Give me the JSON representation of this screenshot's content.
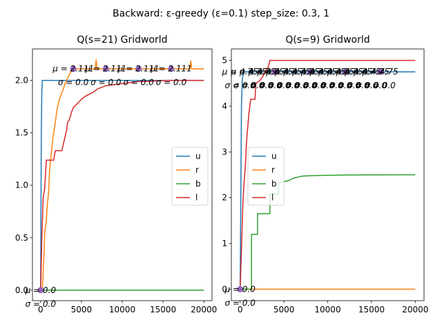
{
  "figure": {
    "suptitle": "Backward: ε-greedy (ε=0.1) step_size: 0.3, 1"
  },
  "chart_data": [
    {
      "type": "line",
      "title": "Q(s=21) Gridworld",
      "xlabel": "",
      "ylabel": "",
      "xlim": [
        -1000,
        21000
      ],
      "ylim": [
        -0.1,
        2.3
      ],
      "xticks": [
        0,
        5000,
        10000,
        15000,
        20000
      ],
      "xtick_labels": [
        "0",
        "5000",
        "10000",
        "15000",
        "20000"
      ],
      "yticks": [
        0.0,
        0.5,
        1.0,
        1.5,
        2.0
      ],
      "ytick_labels": [
        "0.0",
        "0.5",
        "1.0",
        "1.5",
        "2.0"
      ],
      "grid": false,
      "legend_position": "center-right",
      "series": [
        {
          "name": "u",
          "color": "#1f77b4",
          "x": [
            0,
            80,
            150,
            200,
            20000
          ],
          "y": [
            0,
            1.5,
            1.9,
            2.0,
            2.0
          ]
        },
        {
          "name": "r",
          "color": "#ff7f0e",
          "x": [
            0,
            200,
            450,
            500,
            700,
            800,
            1000,
            1100,
            1300,
            1500,
            1800,
            2000,
            2300,
            2700,
            3000,
            3300,
            3600,
            4000,
            6700,
            6800,
            6900,
            7000,
            9000,
            12000,
            18300,
            18400,
            18500,
            18600,
            20000
          ],
          "y": [
            0,
            0,
            0.4,
            0.55,
            0.66,
            0.8,
            0.95,
            1.15,
            1.3,
            1.45,
            1.6,
            1.72,
            1.82,
            1.9,
            1.97,
            2.02,
            2.07,
            2.11,
            2.11,
            2.2,
            2.11,
            2.11,
            2.11,
            2.11,
            2.11,
            2.19,
            2.11,
            2.11,
            2.11
          ]
        },
        {
          "name": "b",
          "color": "#2ca02c",
          "x": [
            0,
            20000
          ],
          "y": [
            0,
            0
          ]
        },
        {
          "name": "l",
          "color": "#d62728",
          "x": [
            0,
            150,
            300,
            500,
            700,
            800,
            1000,
            1600,
            1800,
            2200,
            2600,
            3200,
            3300,
            3500,
            3800,
            4000,
            4500,
            5000,
            5500,
            6000,
            6500,
            7000,
            8000,
            9000,
            10000,
            11000,
            12000,
            13000,
            14000,
            15000,
            16000,
            17000,
            18000,
            20000
          ],
          "y": [
            0,
            0.5,
            0.88,
            0.97,
            1.24,
            1.24,
            1.24,
            1.24,
            1.33,
            1.33,
            1.33,
            1.53,
            1.6,
            1.62,
            1.7,
            1.74,
            1.78,
            1.82,
            1.85,
            1.87,
            1.89,
            1.92,
            1.95,
            1.96,
            1.97,
            1.98,
            1.99,
            1.99,
            1.995,
            1.998,
            2.0,
            2.0,
            2.0,
            2.0
          ]
        }
      ],
      "markers": {
        "color": "#9467bd",
        "x": [
          0,
          4000,
          8000,
          12000,
          16000
        ],
        "y": [
          0,
          2.111,
          2.111,
          2.111,
          2.111
        ]
      },
      "annotations": [
        {
          "x": 0,
          "y": 0.0,
          "mu": "μ = 0.0",
          "sigma": "σ = 0.0"
        },
        {
          "x": 4000,
          "y": 2.111,
          "mu": "μ = 2.111",
          "sigma": "σ = 0.0"
        },
        {
          "x": 8000,
          "y": 2.111,
          "mu": "μ = 2.111",
          "sigma": "σ = 0.0"
        },
        {
          "x": 12000,
          "y": 2.111,
          "mu": "μ = 2.111",
          "sigma": "σ = 0.0"
        },
        {
          "x": 16000,
          "y": 2.111,
          "mu": "μ = 2.111",
          "sigma": "σ = 0.0"
        }
      ]
    },
    {
      "type": "line",
      "title": "Q(s=9) Gridworld",
      "xlabel": "",
      "ylabel": "",
      "xlim": [
        -1000,
        21000
      ],
      "ylim": [
        -0.25,
        5.25
      ],
      "xticks": [
        0,
        5000,
        10000,
        15000,
        20000
      ],
      "xtick_labels": [
        "0",
        "5000",
        "10000",
        "15000",
        "20000"
      ],
      "yticks": [
        0,
        1,
        2,
        3,
        4,
        5
      ],
      "ytick_labels": [
        "0",
        "1",
        "2",
        "3",
        "4",
        "5"
      ],
      "grid": false,
      "legend_position": "center-left",
      "series": [
        {
          "name": "u",
          "color": "#1f77b4",
          "x": [
            0,
            80,
            150,
            250,
            400,
            20000
          ],
          "y": [
            0,
            2.0,
            4.0,
            4.6,
            4.75,
            4.75
          ]
        },
        {
          "name": "r",
          "color": "#ff7f0e",
          "x": [
            0,
            20000
          ],
          "y": [
            0,
            0
          ]
        },
        {
          "name": "b",
          "color": "#2ca02c",
          "x": [
            0,
            1300,
            1300,
            2000,
            2000,
            3400,
            3400,
            4400,
            4400,
            5000,
            5600,
            6000,
            7000,
            8000,
            10000,
            12000,
            14000,
            16000,
            18000,
            20000
          ],
          "y": [
            0,
            0,
            1.2,
            1.2,
            1.65,
            1.65,
            2.08,
            2.08,
            2.32,
            2.35,
            2.38,
            2.42,
            2.47,
            2.48,
            2.49,
            2.495,
            2.498,
            2.499,
            2.5,
            2.5
          ]
        },
        {
          "name": "l",
          "color": "#d62728",
          "x": [
            0,
            100,
            300,
            400,
            600,
            700,
            800,
            900,
            1000,
            1200,
            1500,
            1700,
            1800,
            2200,
            2600,
            2800,
            3200,
            3400,
            20000
          ],
          "y": [
            0,
            0.5,
            1.8,
            2.2,
            2.7,
            3.1,
            3.4,
            3.6,
            3.85,
            4.15,
            4.15,
            4.15,
            4.5,
            4.55,
            4.65,
            4.75,
            4.85,
            5.0,
            5.0
          ]
        }
      ],
      "markers": {
        "color": "#9467bd",
        "x": [
          0,
          4000,
          8000,
          12000,
          16000
        ],
        "y": [
          0,
          4.75,
          4.75,
          4.75,
          4.75
        ]
      },
      "annotations": [
        {
          "x": 0,
          "y": 0.0,
          "mu": "μ = 0.0",
          "sigma": "σ = 0.0"
        },
        {
          "x": 0,
          "y": 4.75,
          "mu": "μ = 4.75",
          "sigma": "σ = 0.0"
        },
        {
          "x": 1000,
          "y": 4.75,
          "mu": "μ = 4.75",
          "sigma": "σ = 0.0"
        },
        {
          "x": 2000,
          "y": 4.75,
          "mu": "μ = 4.75",
          "sigma": "σ = 0.0"
        },
        {
          "x": 3000,
          "y": 4.75,
          "mu": "μ = 4.75",
          "sigma": "σ = 0.0"
        },
        {
          "x": 4000,
          "y": 4.75,
          "mu": "μ = 4.75",
          "sigma": "σ = 0.0"
        },
        {
          "x": 5000,
          "y": 4.75,
          "mu": "μ = 4.75",
          "sigma": "σ = 0.0"
        },
        {
          "x": 6000,
          "y": 4.75,
          "mu": "μ = 4.75",
          "sigma": "σ = 0.0"
        },
        {
          "x": 7000,
          "y": 4.75,
          "mu": "μ = 4.75",
          "sigma": "σ = 0.0"
        },
        {
          "x": 8000,
          "y": 4.75,
          "mu": "μ = 4.75",
          "sigma": "σ = 0.0"
        },
        {
          "x": 9000,
          "y": 4.75,
          "mu": "μ = 4.75",
          "sigma": "σ = 0.0"
        },
        {
          "x": 10000,
          "y": 4.75,
          "mu": "μ = 4.75",
          "sigma": "σ = 0.0"
        },
        {
          "x": 11000,
          "y": 4.75,
          "mu": "μ = 4.75",
          "sigma": "σ = 0.0"
        },
        {
          "x": 12000,
          "y": 4.75,
          "mu": "μ = 4.75",
          "sigma": "σ = 0.0"
        },
        {
          "x": 13000,
          "y": 4.75,
          "mu": "μ = 4.75",
          "sigma": "σ = 0.0"
        },
        {
          "x": 14000,
          "y": 4.75,
          "mu": "μ = 4.75",
          "sigma": "σ = 0.0"
        },
        {
          "x": 15000,
          "y": 4.75,
          "mu": "μ = 4.75",
          "sigma": "σ = 0.0"
        },
        {
          "x": 16000,
          "y": 4.75,
          "mu": "μ = 4.75",
          "sigma": "σ = 0.0"
        }
      ]
    }
  ]
}
